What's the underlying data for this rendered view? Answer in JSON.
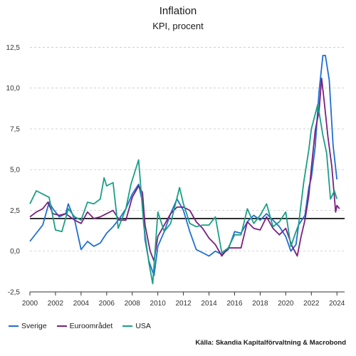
{
  "colors": {
    "sverige": "#1f6fd1",
    "euro": "#7b1f80",
    "usa": "#1a9f85",
    "target": "#000000"
  },
  "chart_data": {
    "type": "line",
    "title": "Inflation",
    "subtitle": "KPI, procent",
    "xlim": [
      2000,
      2024.6
    ],
    "ylim": [
      -2.5,
      13.0
    ],
    "yticks": [
      -2.5,
      0,
      2.5,
      5,
      7.5,
      10,
      12.5
    ],
    "ytick_labels": [
      "-2,5",
      "0,0",
      "2,5",
      "5,0",
      "7,5",
      "10,0",
      "12,5"
    ],
    "xticks": [
      2000,
      2002,
      2004,
      2006,
      2008,
      2010,
      2012,
      2014,
      2016,
      2018,
      2020,
      2022,
      2024
    ],
    "xtick_labels": [
      "2000",
      "2002",
      "2004",
      "2006",
      "2008",
      "2010",
      "2012",
      "2014",
      "2016",
      "2018",
      "2020",
      "2022",
      "2024"
    ],
    "reference_line": 2.0,
    "legend_position": "bottom-left",
    "source": "Källa: Skandia Kapitalförvaltning & Macrobond",
    "series": [
      {
        "name": "Sverige",
        "color_key": "sverige",
        "x": [
          2000.0,
          2000.5,
          2001.0,
          2001.5,
          2001.8,
          2002.3,
          2002.8,
          2003.0,
          2003.5,
          2004.0,
          2004.5,
          2005.0,
          2005.5,
          2006.0,
          2006.5,
          2007.0,
          2007.5,
          2008.0,
          2008.5,
          2008.8,
          2009.0,
          2009.3,
          2009.7,
          2010.0,
          2010.5,
          2011.0,
          2011.5,
          2012.0,
          2012.5,
          2013.0,
          2013.5,
          2014.0,
          2014.5,
          2015.0,
          2015.5,
          2016.0,
          2016.5,
          2017.0,
          2017.5,
          2018.0,
          2018.5,
          2019.0,
          2019.5,
          2020.0,
          2020.4,
          2020.8,
          2021.0,
          2021.5,
          2021.8,
          2022.0,
          2022.3,
          2022.6,
          2022.9,
          2023.1,
          2023.4,
          2023.7,
          2024.0
        ],
        "values": [
          0.6,
          1.1,
          1.6,
          3.0,
          2.6,
          2.1,
          2.3,
          2.9,
          1.9,
          0.1,
          0.6,
          0.3,
          0.5,
          1.1,
          1.5,
          2.0,
          2.6,
          3.5,
          4.1,
          3.0,
          0.7,
          -0.6,
          -1.5,
          0.3,
          1.2,
          2.3,
          3.2,
          2.5,
          1.2,
          0.1,
          -0.1,
          -0.3,
          0.0,
          -0.2,
          0.1,
          1.2,
          1.1,
          1.8,
          2.2,
          1.9,
          2.3,
          1.9,
          1.5,
          0.9,
          0.0,
          0.4,
          1.6,
          2.2,
          3.9,
          4.5,
          6.4,
          9.8,
          12.0,
          12.0,
          10.5,
          6.5,
          4.4
        ]
      },
      {
        "name": "Euroområdet",
        "color_key": "euro",
        "x": [
          2000.0,
          2000.5,
          2001.0,
          2001.4,
          2001.8,
          2002.3,
          2002.8,
          2003.5,
          2004.0,
          2004.5,
          2005.0,
          2005.5,
          2006.0,
          2006.5,
          2007.0,
          2007.5,
          2008.0,
          2008.5,
          2008.8,
          2009.0,
          2009.4,
          2009.7,
          2010.0,
          2010.5,
          2011.0,
          2011.5,
          2012.0,
          2012.5,
          2013.0,
          2013.5,
          2014.0,
          2014.5,
          2015.0,
          2015.5,
          2016.0,
          2016.5,
          2017.0,
          2017.5,
          2018.0,
          2018.5,
          2019.0,
          2019.5,
          2020.0,
          2020.5,
          2020.9,
          2021.2,
          2021.5,
          2021.8,
          2022.0,
          2022.3,
          2022.6,
          2022.8,
          2023.0,
          2023.3,
          2023.6,
          2023.9,
          2024.0,
          2024.2
        ],
        "values": [
          2.1,
          2.4,
          2.6,
          3.0,
          2.3,
          2.2,
          2.3,
          1.9,
          1.7,
          2.4,
          2.0,
          2.1,
          2.3,
          2.5,
          1.9,
          1.9,
          3.3,
          4.0,
          3.6,
          1.6,
          0.0,
          -0.6,
          0.9,
          1.6,
          2.3,
          2.7,
          2.7,
          2.5,
          1.8,
          1.4,
          0.8,
          0.4,
          -0.3,
          0.2,
          0.2,
          0.2,
          1.8,
          1.4,
          1.3,
          2.1,
          1.4,
          1.0,
          1.4,
          0.3,
          -0.3,
          0.9,
          1.9,
          3.4,
          5.1,
          7.4,
          8.6,
          10.6,
          9.2,
          7.0,
          5.2,
          2.4,
          2.8,
          2.6
        ]
      },
      {
        "name": "USA",
        "color_key": "usa",
        "x": [
          2000.0,
          2000.5,
          2001.0,
          2001.5,
          2001.8,
          2002.0,
          2002.5,
          2003.0,
          2003.5,
          2004.0,
          2004.5,
          2005.0,
          2005.5,
          2005.8,
          2006.0,
          2006.5,
          2006.9,
          2007.5,
          2007.9,
          2008.5,
          2008.9,
          2009.3,
          2009.6,
          2010.0,
          2010.5,
          2011.0,
          2011.7,
          2012.0,
          2012.5,
          2013.0,
          2013.5,
          2014.0,
          2014.5,
          2015.0,
          2015.5,
          2016.0,
          2016.5,
          2017.0,
          2017.5,
          2018.0,
          2018.5,
          2019.0,
          2019.5,
          2020.0,
          2020.4,
          2020.8,
          2021.0,
          2021.4,
          2021.8,
          2022.0,
          2022.5,
          2022.9,
          2023.2,
          2023.5,
          2023.8,
          2024.0
        ],
        "values": [
          2.9,
          3.7,
          3.5,
          3.3,
          2.1,
          1.3,
          1.2,
          2.6,
          2.1,
          1.9,
          3.0,
          2.9,
          3.2,
          4.5,
          4.0,
          4.2,
          1.4,
          2.6,
          4.1,
          5.6,
          1.6,
          -0.7,
          -2.0,
          2.4,
          1.2,
          1.7,
          3.9,
          2.9,
          1.7,
          1.5,
          1.6,
          1.6,
          2.1,
          -0.1,
          0.2,
          1.0,
          1.0,
          2.6,
          1.7,
          2.2,
          2.9,
          1.5,
          1.8,
          2.4,
          0.3,
          1.2,
          1.6,
          4.2,
          6.2,
          7.5,
          9.0,
          7.1,
          6.0,
          3.2,
          3.7,
          3.2
        ]
      }
    ]
  }
}
